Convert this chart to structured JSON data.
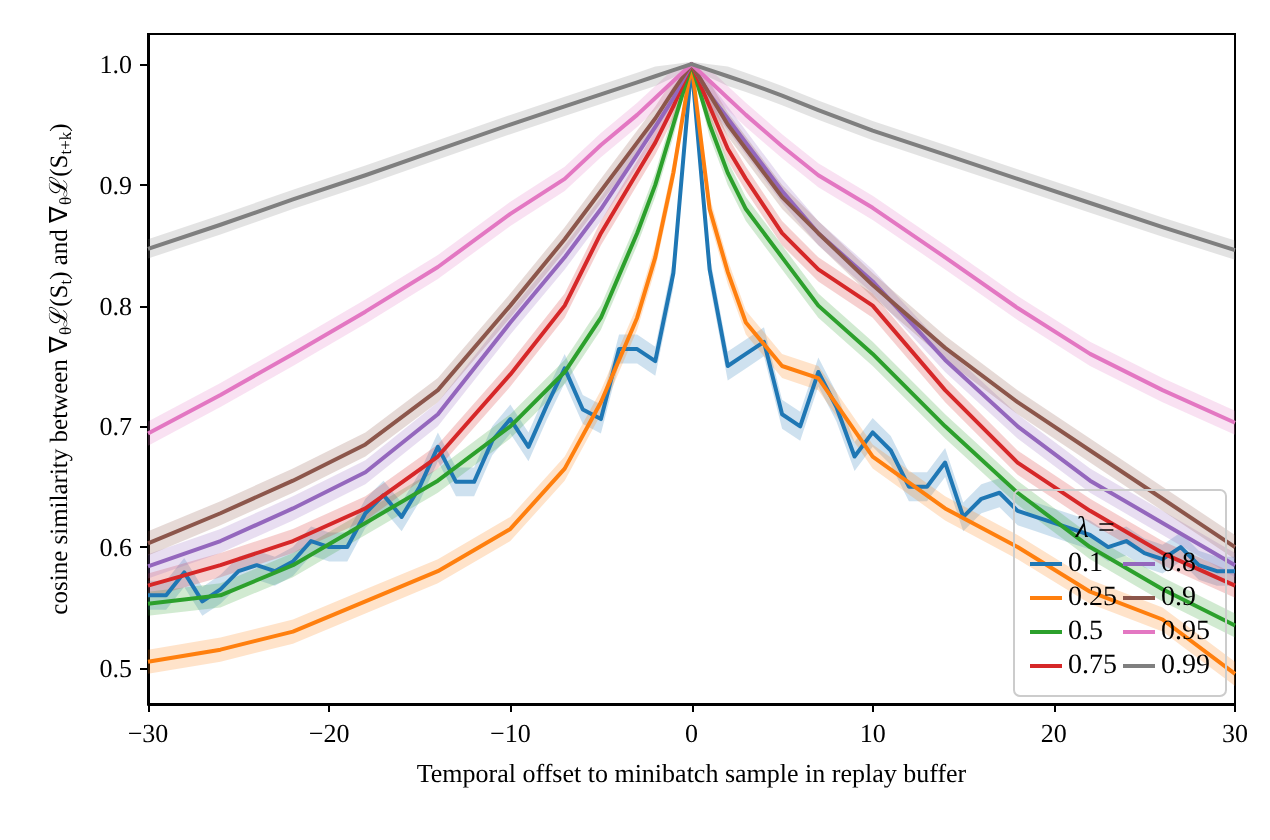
{
  "chart_data": {
    "type": "line",
    "xlabel": "Temporal offset to minibatch sample in replay buffer",
    "ylabel": "cosine similarity between ∇$_{θ}$ℒ(S$_{t}$) and ∇$_{θ}$ℒ(S$_{t+k}$)",
    "legend_title": "λ =",
    "legend": "bottom right",
    "grid": false,
    "marker": "none",
    "xlim": [
      -30,
      30
    ],
    "xticks": [
      {
        "value": -30,
        "label": "−30"
      },
      {
        "value": -20,
        "label": "−20"
      },
      {
        "value": -10,
        "label": "−10"
      },
      0,
      10,
      20,
      30
    ],
    "ylim": [
      0.47,
      1.025
    ],
    "yticks": [
      {
        "value": 0.5,
        "label": "0.5"
      },
      {
        "value": 0.6,
        "label": "0.6"
      },
      {
        "value": 0.7,
        "label": "0.7"
      },
      {
        "value": 0.8,
        "label": "0.8"
      },
      {
        "value": 0.9,
        "label": "0.9"
      },
      {
        "value": 1,
        "label": "1.0"
      }
    ],
    "x": [
      -30,
      -26,
      -22,
      -18,
      -14,
      -10,
      -7,
      -5,
      -3,
      -2,
      -1,
      0,
      1,
      2,
      3,
      5,
      7,
      10,
      14,
      18,
      22,
      26,
      30
    ],
    "series": [
      {
        "name": "0.1",
        "color": "#1f77b4",
        "x": [
          -30,
          -29,
          -28,
          -27,
          -26,
          -25,
          -24,
          -23,
          -22,
          -21,
          -20,
          -19,
          -18,
          -17,
          -16,
          -15,
          -14,
          -13,
          -12,
          -11,
          -10,
          -9,
          -8,
          -7,
          -6,
          -5,
          -4,
          -3,
          -2,
          -1,
          0,
          1,
          2,
          3,
          4,
          5,
          6,
          7,
          8,
          9,
          10,
          11,
          12,
          13,
          14,
          15,
          16,
          17,
          18,
          19,
          20,
          21,
          22,
          23,
          24,
          25,
          26,
          27,
          28,
          29,
          30
        ],
        "values": [
          0.56,
          0.56,
          0.579,
          0.555,
          0.565,
          0.58,
          0.585,
          0.58,
          0.588,
          0.605,
          0.6,
          0.6,
          0.628,
          0.643,
          0.625,
          0.65,
          0.683,
          0.654,
          0.654,
          0.688,
          0.706,
          0.683,
          0.717,
          0.748,
          0.714,
          0.706,
          0.764,
          0.764,
          0.754,
          0.827,
          1.0,
          0.83,
          0.75,
          0.76,
          0.77,
          0.71,
          0.7,
          0.745,
          0.716,
          0.675,
          0.695,
          0.68,
          0.65,
          0.65,
          0.67,
          0.625,
          0.64,
          0.645,
          0.63,
          0.625,
          0.62,
          0.615,
          0.61,
          0.6,
          0.605,
          0.595,
          0.59,
          0.6,
          0.585,
          0.58,
          0.58
        ],
        "lower": [
          0.548,
          0.548,
          0.567,
          0.543,
          0.553,
          0.568,
          0.573,
          0.568,
          0.576,
          0.593,
          0.588,
          0.588,
          0.616,
          0.631,
          0.613,
          0.638,
          0.671,
          0.642,
          0.642,
          0.676,
          0.694,
          0.671,
          0.705,
          0.736,
          0.702,
          0.694,
          0.752,
          0.752,
          0.742,
          0.815,
          0.998,
          0.818,
          0.738,
          0.748,
          0.758,
          0.698,
          0.688,
          0.733,
          0.704,
          0.663,
          0.683,
          0.668,
          0.638,
          0.638,
          0.658,
          0.613,
          0.628,
          0.633,
          0.618,
          0.613,
          0.608,
          0.603,
          0.598,
          0.588,
          0.593,
          0.583,
          0.578,
          0.588,
          0.573,
          0.568,
          0.568
        ],
        "upper": [
          0.572,
          0.572,
          0.591,
          0.567,
          0.577,
          0.592,
          0.597,
          0.592,
          0.6,
          0.617,
          0.612,
          0.612,
          0.64,
          0.655,
          0.637,
          0.662,
          0.695,
          0.666,
          0.666,
          0.7,
          0.718,
          0.695,
          0.729,
          0.76,
          0.726,
          0.718,
          0.776,
          0.776,
          0.766,
          0.839,
          1.002,
          0.842,
          0.762,
          0.772,
          0.782,
          0.722,
          0.712,
          0.757,
          0.728,
          0.687,
          0.707,
          0.692,
          0.662,
          0.662,
          0.682,
          0.637,
          0.652,
          0.657,
          0.642,
          0.637,
          0.632,
          0.627,
          0.622,
          0.612,
          0.617,
          0.607,
          0.602,
          0.612,
          0.597,
          0.592,
          0.592
        ]
      },
      {
        "name": "0.25",
        "color": "#ff7f0e",
        "values": [
          0.505,
          0.515,
          0.53,
          0.555,
          0.58,
          0.615,
          0.665,
          0.72,
          0.79,
          0.84,
          0.91,
          1,
          0.88,
          0.828,
          0.786,
          0.75,
          0.74,
          0.675,
          0.632,
          0.6,
          0.563,
          0.54,
          0.495
        ],
        "lower": [
          0.495,
          0.505,
          0.52,
          0.545,
          0.57,
          0.605,
          0.655,
          0.71,
          0.78,
          0.83,
          0.9,
          0.998,
          0.87,
          0.818,
          0.776,
          0.74,
          0.73,
          0.665,
          0.622,
          0.59,
          0.553,
          0.53,
          0.485
        ],
        "upper": [
          0.515,
          0.525,
          0.54,
          0.565,
          0.59,
          0.625,
          0.675,
          0.73,
          0.8,
          0.85,
          0.92,
          1.002,
          0.89,
          0.838,
          0.796,
          0.76,
          0.75,
          0.685,
          0.642,
          0.61,
          0.573,
          0.55,
          0.505
        ]
      },
      {
        "name": "0.5",
        "color": "#2ca02c",
        "values": [
          0.553,
          0.56,
          0.585,
          0.62,
          0.655,
          0.7,
          0.745,
          0.79,
          0.86,
          0.9,
          0.95,
          1,
          0.95,
          0.91,
          0.88,
          0.84,
          0.8,
          0.76,
          0.7,
          0.645,
          0.6,
          0.565,
          0.535
        ],
        "lower": [
          0.543,
          0.55,
          0.575,
          0.61,
          0.645,
          0.69,
          0.735,
          0.78,
          0.85,
          0.89,
          0.94,
          0.998,
          0.94,
          0.9,
          0.87,
          0.83,
          0.79,
          0.75,
          0.69,
          0.635,
          0.59,
          0.555,
          0.525
        ],
        "upper": [
          0.563,
          0.57,
          0.595,
          0.63,
          0.665,
          0.71,
          0.755,
          0.8,
          0.87,
          0.91,
          0.96,
          1.002,
          0.96,
          0.92,
          0.89,
          0.85,
          0.81,
          0.77,
          0.71,
          0.655,
          0.61,
          0.575,
          0.545
        ]
      },
      {
        "name": "0.75",
        "color": "#d62728",
        "values": [
          0.568,
          0.585,
          0.605,
          0.632,
          0.675,
          0.743,
          0.8,
          0.86,
          0.91,
          0.935,
          0.965,
          1,
          0.965,
          0.93,
          0.905,
          0.86,
          0.83,
          0.8,
          0.73,
          0.67,
          0.63,
          0.595,
          0.568
        ],
        "lower": [
          0.558,
          0.575,
          0.595,
          0.622,
          0.665,
          0.733,
          0.79,
          0.85,
          0.9,
          0.925,
          0.955,
          0.998,
          0.955,
          0.92,
          0.895,
          0.85,
          0.82,
          0.79,
          0.72,
          0.66,
          0.62,
          0.585,
          0.558
        ],
        "upper": [
          0.578,
          0.595,
          0.615,
          0.642,
          0.685,
          0.753,
          0.81,
          0.87,
          0.92,
          0.945,
          0.975,
          1.002,
          0.975,
          0.94,
          0.915,
          0.87,
          0.84,
          0.81,
          0.74,
          0.68,
          0.64,
          0.605,
          0.578
        ]
      },
      {
        "name": "0.8",
        "color": "#9467bd",
        "values": [
          0.584,
          0.605,
          0.632,
          0.662,
          0.71,
          0.786,
          0.84,
          0.88,
          0.925,
          0.948,
          0.972,
          1,
          0.975,
          0.955,
          0.935,
          0.895,
          0.86,
          0.82,
          0.755,
          0.7,
          0.655,
          0.62,
          0.585
        ],
        "lower": [
          0.574,
          0.595,
          0.622,
          0.652,
          0.7,
          0.776,
          0.83,
          0.87,
          0.915,
          0.938,
          0.962,
          0.998,
          0.965,
          0.945,
          0.925,
          0.885,
          0.85,
          0.81,
          0.745,
          0.69,
          0.645,
          0.61,
          0.575
        ],
        "upper": [
          0.594,
          0.615,
          0.642,
          0.672,
          0.72,
          0.796,
          0.85,
          0.89,
          0.935,
          0.958,
          0.982,
          1.002,
          0.985,
          0.965,
          0.945,
          0.905,
          0.87,
          0.83,
          0.765,
          0.71,
          0.665,
          0.63,
          0.595
        ]
      },
      {
        "name": "0.9",
        "color": "#8c564b",
        "values": [
          0.603,
          0.628,
          0.655,
          0.685,
          0.73,
          0.8,
          0.855,
          0.895,
          0.935,
          0.955,
          0.978,
          1,
          0.975,
          0.95,
          0.93,
          0.89,
          0.86,
          0.817,
          0.765,
          0.72,
          0.68,
          0.64,
          0.6
        ],
        "lower": [
          0.593,
          0.618,
          0.645,
          0.675,
          0.72,
          0.79,
          0.845,
          0.885,
          0.925,
          0.945,
          0.968,
          0.998,
          0.965,
          0.94,
          0.92,
          0.88,
          0.85,
          0.807,
          0.755,
          0.71,
          0.67,
          0.63,
          0.59
        ],
        "upper": [
          0.613,
          0.638,
          0.665,
          0.695,
          0.74,
          0.81,
          0.865,
          0.905,
          0.945,
          0.965,
          0.988,
          1.002,
          0.985,
          0.96,
          0.94,
          0.9,
          0.87,
          0.827,
          0.775,
          0.73,
          0.69,
          0.65,
          0.61
        ]
      },
      {
        "name": "0.95",
        "color": "#e377c2",
        "values": [
          0.694,
          0.726,
          0.76,
          0.795,
          0.832,
          0.876,
          0.905,
          0.933,
          0.958,
          0.972,
          0.986,
          1,
          0.986,
          0.972,
          0.958,
          0.932,
          0.908,
          0.881,
          0.84,
          0.798,
          0.76,
          0.73,
          0.703
        ],
        "lower": [
          0.684,
          0.716,
          0.75,
          0.785,
          0.822,
          0.866,
          0.895,
          0.923,
          0.948,
          0.962,
          0.976,
          0.998,
          0.976,
          0.962,
          0.948,
          0.922,
          0.898,
          0.871,
          0.83,
          0.788,
          0.75,
          0.72,
          0.693
        ],
        "upper": [
          0.704,
          0.736,
          0.77,
          0.805,
          0.842,
          0.886,
          0.915,
          0.943,
          0.968,
          0.982,
          0.996,
          1.002,
          0.996,
          0.982,
          0.968,
          0.942,
          0.918,
          0.891,
          0.85,
          0.808,
          0.77,
          0.74,
          0.713
        ]
      },
      {
        "name": "0.99",
        "color": "#7f7f7f",
        "values": [
          0.847,
          0.867,
          0.888,
          0.908,
          0.929,
          0.95,
          0.965,
          0.975,
          0.985,
          0.99,
          0.995,
          1,
          0.995,
          0.99,
          0.985,
          0.974,
          0.962,
          0.945,
          0.925,
          0.905,
          0.885,
          0.865,
          0.846
        ],
        "lower": [
          0.839,
          0.859,
          0.88,
          0.9,
          0.921,
          0.942,
          0.957,
          0.967,
          0.977,
          0.982,
          0.989,
          0.998,
          0.989,
          0.982,
          0.977,
          0.966,
          0.954,
          0.937,
          0.917,
          0.897,
          0.877,
          0.857,
          0.838
        ],
        "upper": [
          0.855,
          0.875,
          0.896,
          0.916,
          0.937,
          0.958,
          0.973,
          0.983,
          0.993,
          0.998,
          1.0,
          1.002,
          1.0,
          0.998,
          0.993,
          0.982,
          0.97,
          0.953,
          0.933,
          0.913,
          0.893,
          0.873,
          0.854
        ]
      }
    ]
  }
}
